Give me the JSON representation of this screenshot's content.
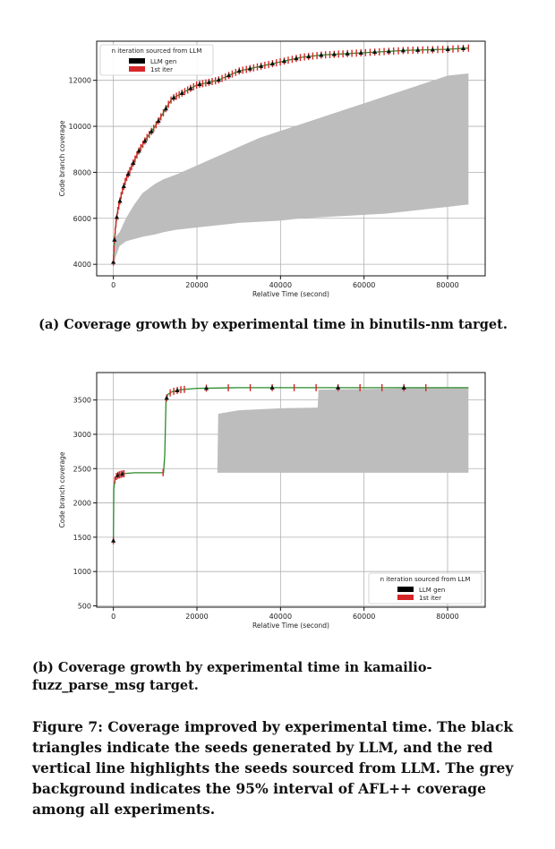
{
  "chart_data": [
    {
      "type": "line",
      "ylabel": "Code branch coverage",
      "xlabel": "Relative Time (second)",
      "xlim": [
        -4000,
        89000
      ],
      "ylim": [
        3500,
        13700
      ],
      "xticks": [
        0,
        20000,
        40000,
        60000,
        80000
      ],
      "yticks": [
        4000,
        6000,
        8000,
        10000,
        12000
      ],
      "grid": true,
      "legend": {
        "title": "n iteration sourced from LLM",
        "entries": [
          {
            "label": "LLM gen",
            "color": "#000000"
          },
          {
            "label": "1st iter",
            "color": "#d62728"
          }
        ],
        "placement": "top-left"
      },
      "series": [
        {
          "x": [
            0,
            200,
            500,
            1000,
            2000,
            3000,
            4500,
            6000,
            8000,
            10000,
            12000,
            14000,
            17000,
            20000,
            25000,
            30000,
            35000,
            40000,
            45000,
            50000,
            55000,
            60000,
            70000,
            80000,
            85000
          ],
          "y": [
            4100,
            4900,
            5600,
            6300,
            7100,
            7700,
            8300,
            8900,
            9500,
            10000,
            10600,
            11200,
            11500,
            11800,
            12000,
            12400,
            12600,
            12800,
            13000,
            13100,
            13150,
            13200,
            13300,
            13350,
            13400
          ]
        }
      ],
      "interval_95": {
        "x": [
          0,
          500,
          1500,
          3000,
          5000,
          7000,
          10000,
          12000,
          15000,
          20000,
          25000,
          30000,
          35000,
          40000,
          45000,
          50000,
          55000,
          60000,
          65000,
          70000,
          75000,
          80000,
          85000
        ],
        "upper": [
          4800,
          5200,
          5400,
          6000,
          6600,
          7100,
          7500,
          7700,
          7900,
          8300,
          8700,
          9100,
          9500,
          9800,
          10100,
          10400,
          10700,
          11000,
          11300,
          11600,
          11900,
          12200,
          12300
        ],
        "lower": [
          3900,
          4300,
          4800,
          5000,
          5100,
          5200,
          5300,
          5400,
          5500,
          5600,
          5700,
          5800,
          5850,
          5900,
          6000,
          6050,
          6100,
          6150,
          6200,
          6300,
          6400,
          6500,
          6600
        ]
      }
    },
    {
      "type": "line",
      "ylabel": "Code branch coverage",
      "xlabel": "Relative Time (second)",
      "xlim": [
        -4000,
        89000
      ],
      "ylim": [
        480,
        3900
      ],
      "xticks": [
        0,
        20000,
        40000,
        60000,
        80000
      ],
      "yticks": [
        500,
        1000,
        1500,
        2000,
        2500,
        3000,
        3500
      ],
      "grid": true,
      "legend": {
        "title": "n iteration sourced from LLM",
        "entries": [
          {
            "label": "LLM gen",
            "color": "#000000"
          },
          {
            "label": "1st iter",
            "color": "#d62728"
          }
        ],
        "placement": "lower-right"
      },
      "series": [
        {
          "x": [
            0,
            100,
            300,
            600,
            1000,
            2000,
            3000,
            5000,
            8000,
            12000,
            12300,
            12600,
            13000,
            14000,
            16000,
            18000,
            20000,
            30000,
            50000,
            85000
          ],
          "y": [
            1450,
            2200,
            2320,
            2380,
            2400,
            2420,
            2430,
            2440,
            2440,
            2440,
            2700,
            3500,
            3580,
            3620,
            3650,
            3660,
            3670,
            3680,
            3680,
            3680
          ]
        }
      ],
      "interval_95": {
        "x": [
          24900,
          25100,
          30000,
          40000,
          48900,
          49100,
          60000,
          70000,
          80000,
          85000
        ],
        "upper": [
          2500,
          3300,
          3350,
          3380,
          3390,
          3650,
          3660,
          3670,
          3680,
          3680
        ],
        "lower": [
          2440,
          2440,
          2440,
          2440,
          2440,
          2440,
          2440,
          2440,
          2440,
          2440
        ]
      }
    }
  ],
  "captions": {
    "a": "(a) Coverage growth by experimental time in binutils-nm target.",
    "b": "(b) Coverage growth by experimental time in kamailio-fuzz_parse_msg target.",
    "figure": "Figure 7: Coverage improved by experimental time. The black triangles indicate the seeds generated by LLM, and the red vertical line highlights the seeds sourced from LLM. The grey background indicates the 95% interval of AFL++ coverage among all experiments."
  }
}
